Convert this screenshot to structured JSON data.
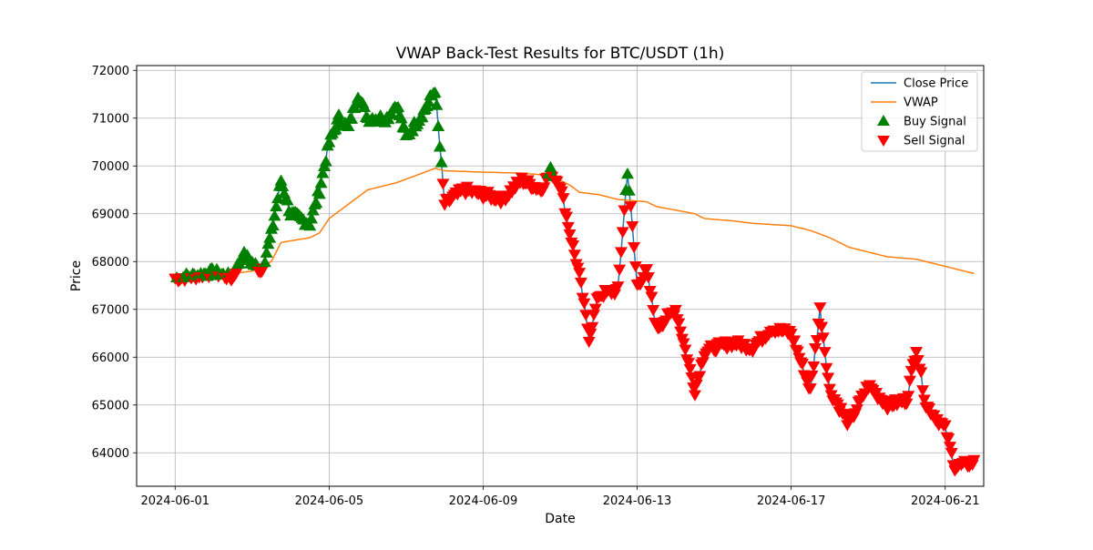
{
  "chart_data": {
    "type": "line",
    "title": "VWAP Back-Test Results for BTC/USDT (1h)",
    "xlabel": "Date",
    "ylabel": "Price",
    "x_start": "2024-06-01",
    "x_end": "2024-06-21",
    "xlim": [
      "2024-05-31",
      "2024-06-22"
    ],
    "ylim": [
      63300,
      72100
    ],
    "x_ticks": [
      "2024-06-01",
      "2024-06-05",
      "2024-06-09",
      "2024-06-13",
      "2024-06-17",
      "2024-06-21"
    ],
    "y_ticks": [
      64000,
      65000,
      66000,
      67000,
      68000,
      69000,
      70000,
      71000,
      72000
    ],
    "grid": true,
    "legend_position": "top-right",
    "colors": {
      "close": "#1f77b4",
      "vwap": "#ff7f0e",
      "buy": "#008000",
      "sell": "#ff0000"
    },
    "legend": [
      "Close Price",
      "VWAP",
      "Buy Signal",
      "Sell Signal"
    ],
    "close_keypoints": [
      [
        "2024-06-01",
        67650
      ],
      [
        "2024-06-01 12:00",
        67700
      ],
      [
        "2024-06-02",
        67780
      ],
      [
        "2024-06-02 12:00",
        67650
      ],
      [
        "2024-06-02 18:00",
        68150
      ],
      [
        "2024-06-03 06:00",
        67800
      ],
      [
        "2024-06-03 12:00",
        68600
      ],
      [
        "2024-06-03 18:00",
        69700
      ],
      [
        "2024-06-04",
        69000
      ],
      [
        "2024-06-04 12:00",
        68800
      ],
      [
        "2024-06-04 18:00",
        69500
      ],
      [
        "2024-06-05",
        70500
      ],
      [
        "2024-06-05 06:00",
        71000
      ],
      [
        "2024-06-05 12:00",
        70800
      ],
      [
        "2024-06-05 18:00",
        71500
      ],
      [
        "2024-06-06",
        71000
      ],
      [
        "2024-06-06 12:00",
        71000
      ],
      [
        "2024-06-06 18:00",
        71300
      ],
      [
        "2024-06-07",
        70600
      ],
      [
        "2024-06-07 12:00",
        71200
      ],
      [
        "2024-06-07 18:00",
        71600
      ],
      [
        "2024-06-08",
        69200
      ],
      [
        "2024-06-08 12:00",
        69500
      ],
      [
        "2024-06-09",
        69400
      ],
      [
        "2024-06-09 12:00",
        69300
      ],
      [
        "2024-06-10",
        69700
      ],
      [
        "2024-06-10 12:00",
        69500
      ],
      [
        "2024-06-10 18:00",
        69900
      ],
      [
        "2024-06-11",
        69600
      ],
      [
        "2024-06-11 06:00",
        68600
      ],
      [
        "2024-06-11 12:00",
        67700
      ],
      [
        "2024-06-11 18:00",
        66400
      ],
      [
        "2024-06-12",
        67300
      ],
      [
        "2024-06-12 12:00",
        67400
      ],
      [
        "2024-06-12 18:00",
        69900
      ],
      [
        "2024-06-13",
        67500
      ],
      [
        "2024-06-13 06:00",
        67800
      ],
      [
        "2024-06-13 12:00",
        66600
      ],
      [
        "2024-06-14",
        67000
      ],
      [
        "2024-06-14 12:00",
        65300
      ],
      [
        "2024-06-14 18:00",
        66100
      ],
      [
        "2024-06-15",
        66200
      ],
      [
        "2024-06-15 12:00",
        66300
      ],
      [
        "2024-06-16",
        66200
      ],
      [
        "2024-06-16 12:00",
        66600
      ],
      [
        "2024-06-17",
        66500
      ],
      [
        "2024-06-17 12:00",
        65300
      ],
      [
        "2024-06-17 18:00",
        67000
      ],
      [
        "2024-06-18",
        65300
      ],
      [
        "2024-06-18 12:00",
        64600
      ],
      [
        "2024-06-19",
        65400
      ],
      [
        "2024-06-19 12:00",
        65000
      ],
      [
        "2024-06-20",
        65100
      ],
      [
        "2024-06-20 06:00",
        66200
      ],
      [
        "2024-06-20 12:00",
        65000
      ],
      [
        "2024-06-21",
        64500
      ],
      [
        "2024-06-21 06:00",
        63700
      ],
      [
        "2024-06-21 18:00",
        63800
      ]
    ],
    "vwap_keypoints": [
      [
        "2024-06-01",
        67650
      ],
      [
        "2024-06-02",
        67700
      ],
      [
        "2024-06-03",
        67800
      ],
      [
        "2024-06-03 12:00",
        68000
      ],
      [
        "2024-06-03 18:00",
        68400
      ],
      [
        "2024-06-04 12:00",
        68500
      ],
      [
        "2024-06-04 18:00",
        68600
      ],
      [
        "2024-06-05",
        68900
      ],
      [
        "2024-06-05 12:00",
        69200
      ],
      [
        "2024-06-06",
        69500
      ],
      [
        "2024-06-06 18:00",
        69650
      ],
      [
        "2024-06-07 06:00",
        69800
      ],
      [
        "2024-06-07 18:00",
        69950
      ],
      [
        "2024-06-08",
        69900
      ],
      [
        "2024-06-09",
        69870
      ],
      [
        "2024-06-10",
        69850
      ],
      [
        "2024-06-10 18:00",
        69800
      ],
      [
        "2024-06-11 06:00",
        69600
      ],
      [
        "2024-06-11 12:00",
        69450
      ],
      [
        "2024-06-12",
        69400
      ],
      [
        "2024-06-12 12:00",
        69300
      ],
      [
        "2024-06-13 06:00",
        69250
      ],
      [
        "2024-06-13 12:00",
        69150
      ],
      [
        "2024-06-14 12:00",
        69000
      ],
      [
        "2024-06-14 18:00",
        68900
      ],
      [
        "2024-06-15 12:00",
        68850
      ],
      [
        "2024-06-16",
        68800
      ],
      [
        "2024-06-17",
        68750
      ],
      [
        "2024-06-17 12:00",
        68650
      ],
      [
        "2024-06-18",
        68500
      ],
      [
        "2024-06-18 12:00",
        68300
      ],
      [
        "2024-06-19",
        68200
      ],
      [
        "2024-06-19 12:00",
        68100
      ],
      [
        "2024-06-20 06:00",
        68050
      ],
      [
        "2024-06-20 18:00",
        67950
      ],
      [
        "2024-06-21",
        67900
      ],
      [
        "2024-06-21 18:00",
        67750
      ]
    ],
    "signal_rule": "Buy Signal when Close Price is above VWAP, Sell Signal when below"
  }
}
